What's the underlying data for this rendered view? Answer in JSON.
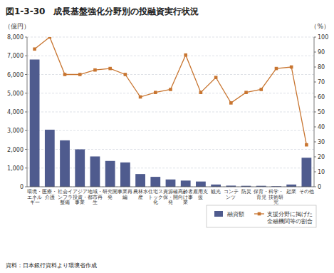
{
  "chart_data": {
    "type": "bar",
    "title": "図1-3-30　成長基盤強化分野別の投融資実行状況",
    "source": "資料：日本銀行資料より環境省作成",
    "ylabel": "（億円）",
    "y2label": "（%）",
    "categories": [
      "環境・\nエネル\nギー",
      "医療・\n介護",
      "社会イ\nンフラ\n整備",
      "アジア\n投資・\n事業",
      "地域・\n都市再\n生",
      "研究開\n発",
      "事業再\n編",
      "農林水\n産",
      "住宅ス\nトック\n化",
      "資源確\n保・開\n発",
      "高齢者\n向け事\n業",
      "雇用支\n援",
      "観光",
      "コンテ\nンツ",
      "防災",
      "保育・\n育児",
      "科学・\n技術研\n究",
      "起業",
      "その他"
    ],
    "series": [
      {
        "name": "融資額",
        "type": "bar",
        "color": "#4f5b8e",
        "values": [
          6800,
          3050,
          2480,
          2000,
          1620,
          1380,
          1300,
          680,
          530,
          390,
          330,
          280,
          120,
          60,
          50,
          50,
          30,
          120,
          1550
        ]
      },
      {
        "name": "支援分野に掲げた\n金融機関等の割合",
        "type": "line",
        "axis": "y2",
        "color": "#c87530",
        "marker": "square",
        "values": [
          92,
          100,
          75,
          75,
          78,
          79,
          75,
          60,
          63,
          65,
          88,
          63,
          73,
          56,
          63,
          65,
          79,
          80,
          28
        ]
      }
    ],
    "ylim": [
      0,
      8000
    ],
    "yticks": [
      0,
      {
        "value": 1000,
        "label": "1,000"
      },
      {
        "value": 2000,
        "label": "2,000"
      },
      {
        "value": 3000,
        "label": "3,000"
      },
      {
        "value": 4000,
        "label": "4,000"
      },
      {
        "value": 5000,
        "label": "5,000"
      },
      {
        "value": 6000,
        "label": "6,000"
      },
      {
        "value": 7000,
        "label": "7,000"
      },
      {
        "value": 8000,
        "label": "8,000"
      }
    ],
    "y2lim": [
      0,
      100
    ],
    "y2ticks": [
      0,
      10,
      20,
      30,
      40,
      50,
      60,
      70,
      80,
      90,
      100
    ],
    "grid": true,
    "legend": "bottom"
  }
}
